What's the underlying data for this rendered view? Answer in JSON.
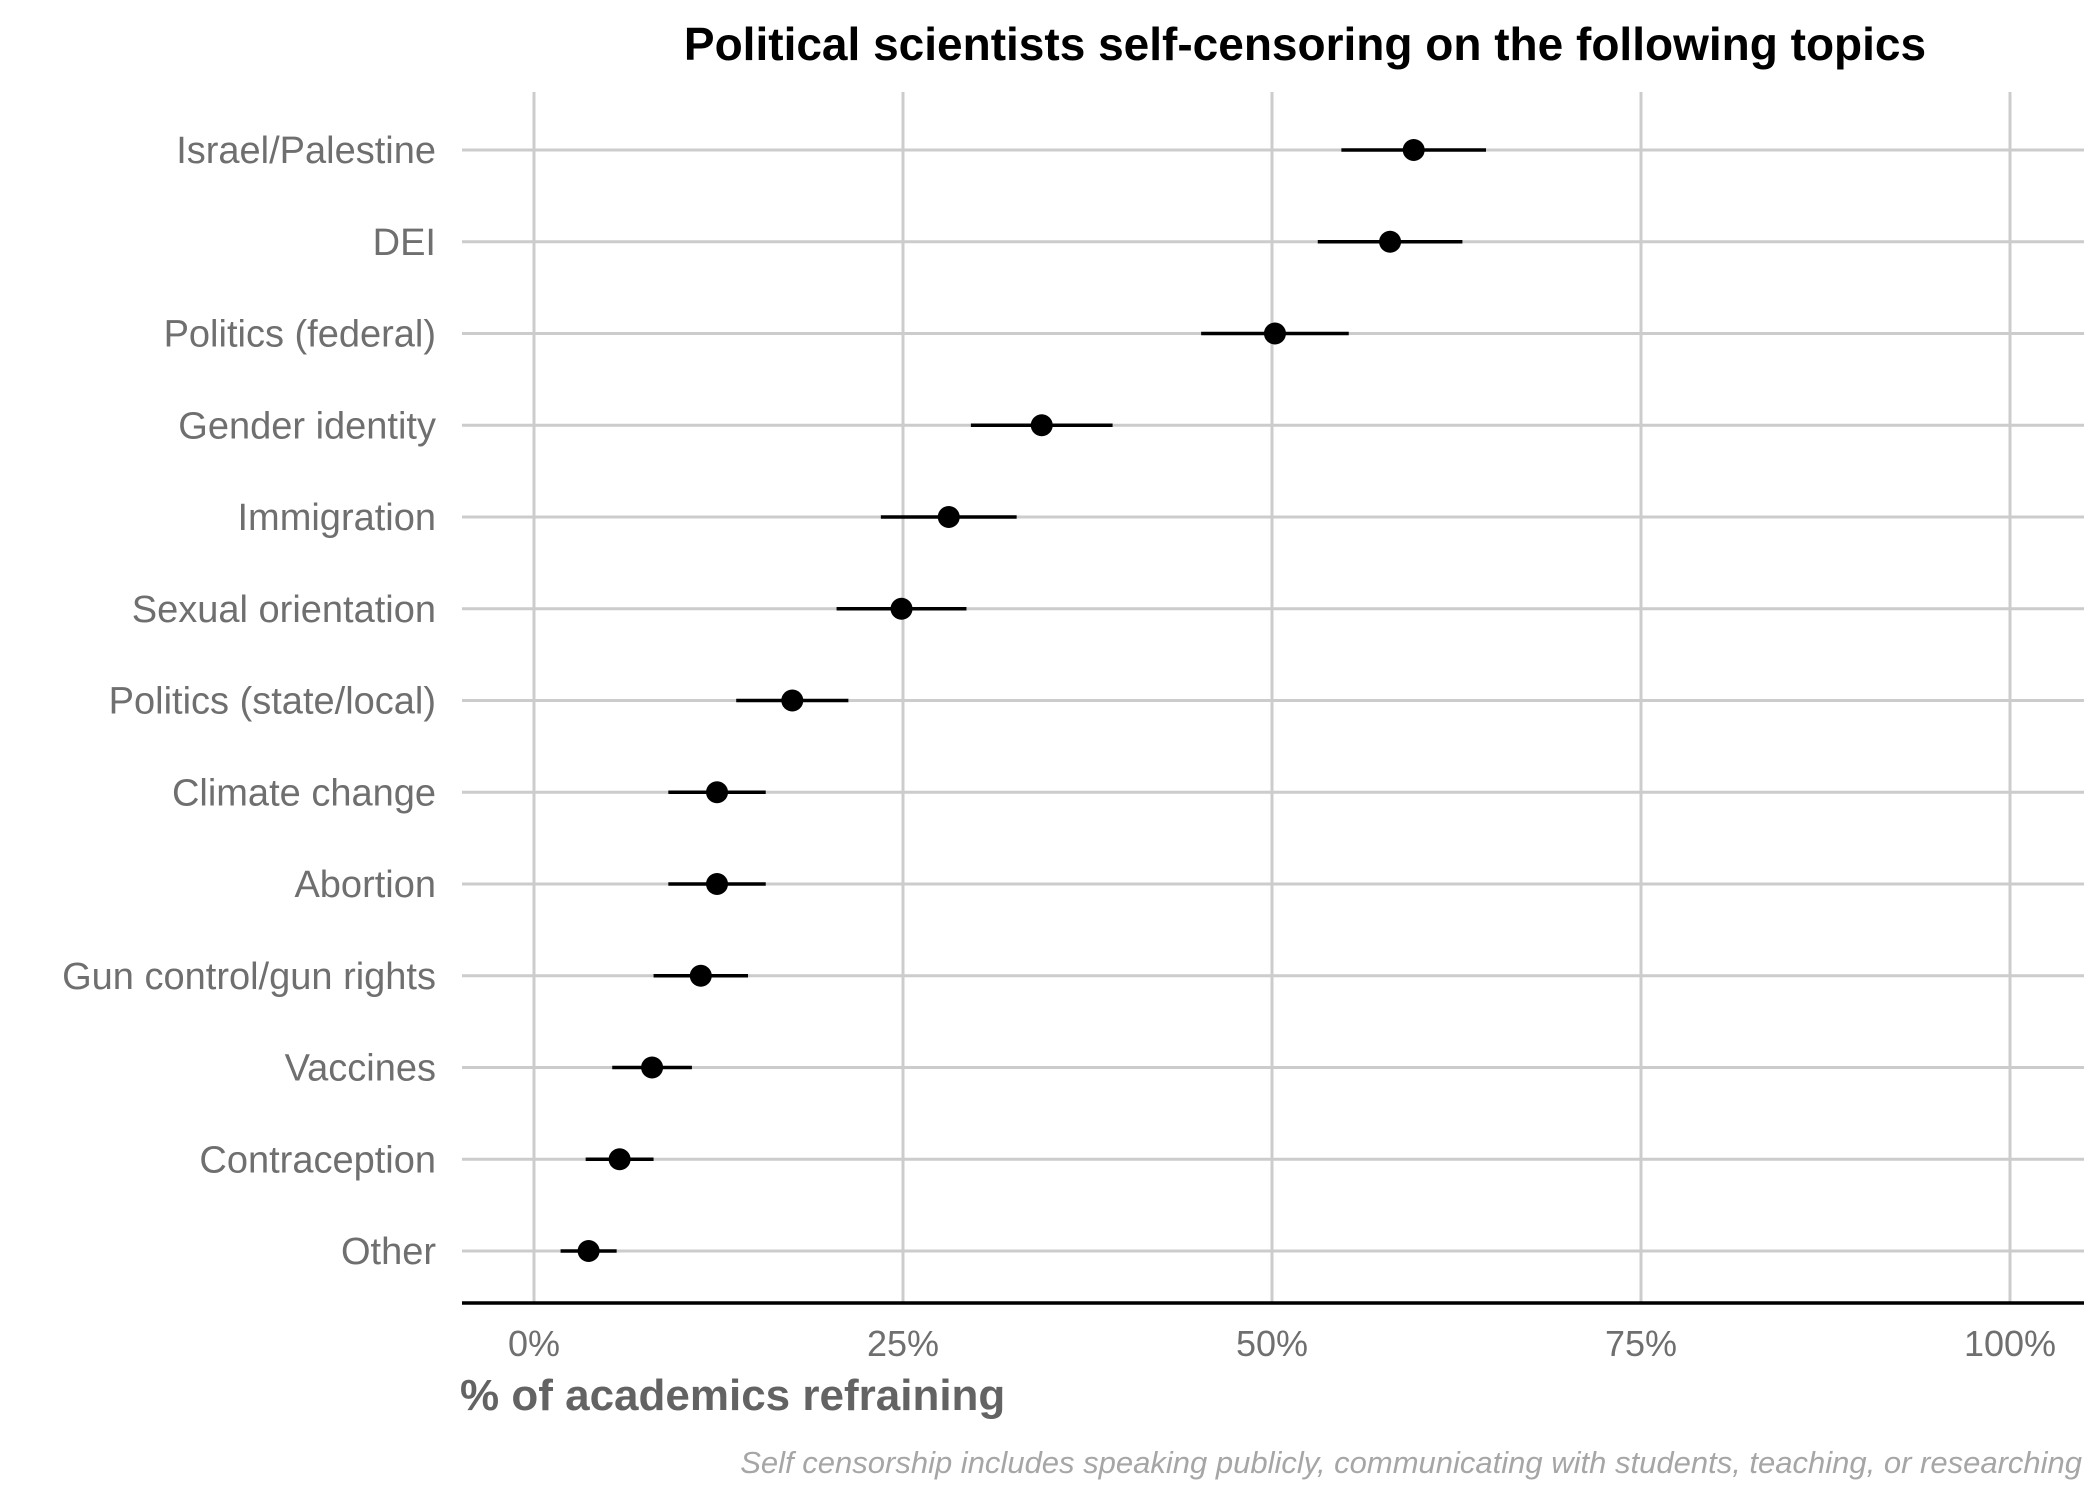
{
  "chart_data": {
    "type": "scatter",
    "title": "Political scientists self-censoring on the following topics",
    "xlabel": "% of academics refraining",
    "ylabel": "",
    "caption": "Self censorship includes speaking publicly, communicating with students, teaching, or researching",
    "xlim": [
      0,
      1
    ],
    "x_tick_values": [
      0,
      0.25,
      0.5,
      0.75,
      1
    ],
    "x_tick_labels": [
      "0%",
      "25%",
      "50%",
      "75%",
      "100%"
    ],
    "grid": true,
    "colors": {
      "point": "#000000",
      "grid": "#cccccc",
      "axis": "#000000"
    },
    "series": [
      {
        "categories": [
          "Israel/Palestine",
          "DEI",
          "Politics (federal)",
          "Gender identity",
          "Immigration",
          "Sexual orientation",
          "Politics (state/local)",
          "Climate change",
          "Abortion",
          "Gun control/gun rights",
          "Vaccines",
          "Contraception",
          "Other"
        ],
        "values": [
          0.596,
          0.58,
          0.502,
          0.344,
          0.281,
          0.249,
          0.175,
          0.124,
          0.124,
          0.113,
          0.08,
          0.058,
          0.037
        ],
        "lower": [
          0.547,
          0.531,
          0.452,
          0.296,
          0.235,
          0.205,
          0.137,
          0.091,
          0.091,
          0.081,
          0.053,
          0.035,
          0.018
        ],
        "upper": [
          0.645,
          0.629,
          0.552,
          0.392,
          0.327,
          0.293,
          0.213,
          0.157,
          0.157,
          0.145,
          0.107,
          0.081,
          0.056
        ]
      }
    ]
  }
}
